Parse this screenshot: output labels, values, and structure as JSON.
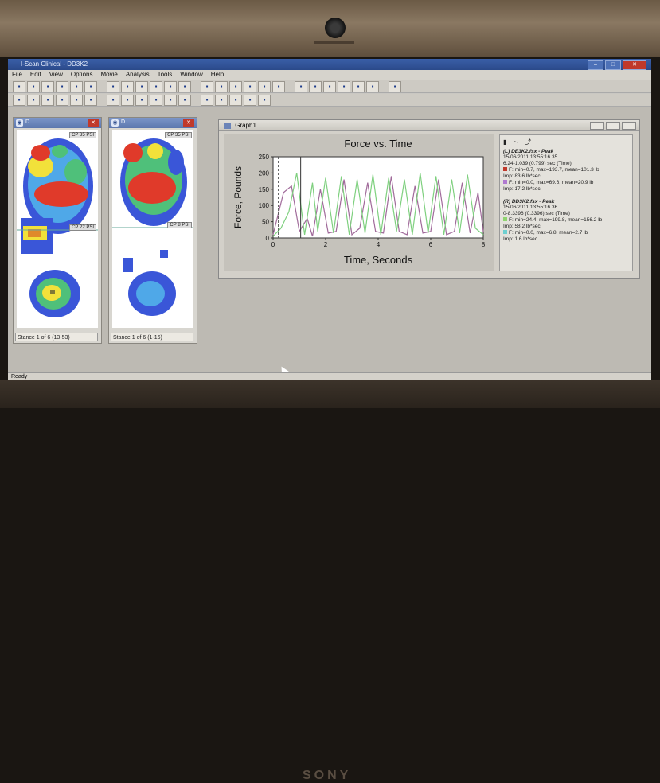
{
  "app": {
    "title": "I-Scan Clinical - DD3K2",
    "menu": [
      "File",
      "Edit",
      "View",
      "Options",
      "Movie",
      "Analysis",
      "Tools",
      "Window",
      "Help"
    ],
    "status": "Ready"
  },
  "toolbar1_icons": [
    "open-icon",
    "save-icon",
    "print-icon",
    "blank-icon",
    "folder-icon",
    "disk-icon",
    "printer-icon",
    "preview-icon",
    "copy-icon",
    "paste-icon",
    "undo-icon",
    "first-frame-icon",
    "prev-frame-icon",
    "rewind-icon",
    "stop-icon",
    "play-back-icon",
    "play-icon",
    "forward-icon",
    "last-frame-icon",
    "record-icon",
    "camera-icon",
    "calibrate-icon",
    "chart-icon",
    "grid-icon",
    "help-icon"
  ],
  "toolbar2_icons": [
    "foot-icon",
    "pressure-icon",
    "chart-icon",
    "region-icon",
    "tile-icon",
    "arrow-icon",
    "line-icon",
    "box-icon",
    "select-icon",
    "peak-icon",
    "trace-icon",
    "table-icon",
    "graph-icon",
    "ruler-icon",
    "image-icon",
    "export-icon",
    "window-icon"
  ],
  "foot_windows": [
    {
      "label": "D",
      "psi_top": "CP 35 PSI",
      "psi_mid": "CP 22 PSI",
      "status": "Stance 1 of 6 (13-53)"
    },
    {
      "label": "D",
      "psi_top": "CP 35 PSI",
      "psi_mid": "CP 8 PSI",
      "status": "Stance 1 of 6 (1-16)"
    }
  ],
  "graph": {
    "window_title": "Graph1",
    "legend_icons": [
      "graph-icon",
      "peak-icon",
      "trace-icon"
    ]
  },
  "chart_data": {
    "type": "line",
    "title": "Force vs. Time",
    "xlabel": "Time, Seconds",
    "ylabel": "Force, Pounds",
    "xlim": [
      0,
      8
    ],
    "ylim": [
      0,
      250
    ],
    "xticks": [
      0,
      2,
      4,
      6,
      8
    ],
    "yticks": [
      0,
      50,
      100,
      150,
      200,
      250
    ],
    "grid": false,
    "series": [
      {
        "name": "(L) DE3K2.fsx - Peak",
        "color": "#a06a9a",
        "x": [
          0,
          0.4,
          0.7,
          1.0,
          1.3,
          1.5,
          1.8,
          2.1,
          2.4,
          2.7,
          3.0,
          3.3,
          3.6,
          3.9,
          4.2,
          4.5,
          4.8,
          5.1,
          5.4,
          5.7,
          6.0,
          6.3,
          6.6,
          6.9,
          7.2,
          7.5,
          7.8,
          8.0
        ],
        "y": [
          10,
          140,
          160,
          20,
          60,
          5,
          150,
          15,
          20,
          180,
          10,
          30,
          170,
          20,
          15,
          190,
          20,
          10,
          160,
          15,
          20,
          180,
          10,
          20,
          170,
          15,
          140,
          20
        ]
      },
      {
        "name": "(R) DD3K2.fsx - Peak",
        "color": "#7fd07f",
        "x": [
          0,
          0.3,
          0.6,
          0.9,
          1.2,
          1.5,
          1.7,
          2.0,
          2.3,
          2.6,
          2.9,
          3.2,
          3.5,
          3.8,
          4.1,
          4.4,
          4.7,
          5.0,
          5.3,
          5.6,
          5.9,
          6.2,
          6.5,
          6.8,
          7.1,
          7.4,
          7.7,
          8.0
        ],
        "y": [
          5,
          30,
          80,
          200,
          10,
          170,
          20,
          185,
          15,
          190,
          10,
          180,
          15,
          195,
          10,
          185,
          20,
          180,
          10,
          200,
          15,
          190,
          10,
          180,
          15,
          195,
          30,
          10
        ]
      }
    ]
  },
  "legend": {
    "left": {
      "header": "(L) DE3K2.fsx - Peak",
      "date": "15/06/2011 13:55:16.35",
      "range": "6.24-1.039 (0.799) sec (Time)",
      "f_stats": "F: min=0.7, max=193.7, mean=101.3 lb",
      "imp1": "Imp: 83.6 lb*sec",
      "f2_stats": "F: min=0.0, max=69.6, mean=20.9 lb",
      "imp2": "Imp: 17.2 lb*sec",
      "c1": "#c0392b",
      "c2": "#b07ad0"
    },
    "right": {
      "header": "(R) DD3K2.fsx - Peak",
      "date": "15/06/2011 13:55:16.36",
      "range": "0-8.3396 (0.3396) sec (Time)",
      "f_stats": "F: min=24.4, max=199.8, mean=156.2 lb",
      "imp1": "Imp: 58.2 lb*sec",
      "f2_stats": "F: min=0.0, max=6.8, mean=2.7 lb",
      "imp2": "Imp: 1.6 lb*sec",
      "c1": "#8fd46f",
      "c2": "#6fd0d0"
    }
  },
  "device": {
    "brand": "SONY"
  }
}
